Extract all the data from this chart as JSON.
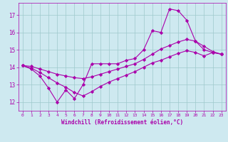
{
  "xlabel": "Windchill (Refroidissement éolien,°C)",
  "bg_color": "#cee9f0",
  "line_color": "#aa00aa",
  "grid_color": "#9ec8cc",
  "xlim": [
    -0.5,
    23.5
  ],
  "ylim": [
    11.5,
    17.7
  ],
  "xticks": [
    0,
    1,
    2,
    3,
    4,
    5,
    6,
    7,
    8,
    9,
    10,
    11,
    12,
    13,
    14,
    15,
    16,
    17,
    18,
    19,
    20,
    21,
    22,
    23
  ],
  "yticks": [
    12,
    13,
    14,
    15,
    16,
    17
  ],
  "line1_x": [
    0,
    1,
    2,
    3,
    4,
    5,
    6,
    7,
    8,
    9,
    10,
    11,
    12,
    13,
    14,
    15,
    16,
    17,
    18,
    19,
    20,
    21,
    22,
    23
  ],
  "line1_y": [
    14.1,
    13.9,
    13.5,
    12.8,
    12.0,
    12.7,
    12.2,
    13.0,
    14.2,
    14.2,
    14.2,
    14.2,
    14.4,
    14.5,
    15.0,
    16.1,
    16.0,
    17.35,
    17.25,
    16.7,
    15.5,
    15.0,
    14.85,
    14.75
  ],
  "line2_x": [
    0,
    1,
    2,
    3,
    4,
    5,
    6,
    7,
    8,
    9,
    10,
    11,
    12,
    13,
    14,
    15,
    16,
    17,
    18,
    19,
    20,
    21,
    22,
    23
  ],
  "line2_y": [
    14.1,
    14.05,
    13.9,
    13.75,
    13.6,
    13.5,
    13.4,
    13.35,
    13.45,
    13.6,
    13.75,
    13.9,
    14.05,
    14.2,
    14.45,
    14.75,
    15.05,
    15.25,
    15.45,
    15.6,
    15.5,
    15.2,
    14.9,
    14.75
  ],
  "line3_x": [
    0,
    1,
    2,
    3,
    4,
    5,
    6,
    7,
    8,
    9,
    10,
    11,
    12,
    13,
    14,
    15,
    16,
    17,
    18,
    19,
    20,
    21,
    22,
    23
  ],
  "line3_y": [
    14.1,
    13.95,
    13.7,
    13.4,
    13.1,
    12.85,
    12.55,
    12.35,
    12.6,
    12.9,
    13.15,
    13.35,
    13.55,
    13.75,
    14.0,
    14.25,
    14.4,
    14.6,
    14.8,
    14.95,
    14.85,
    14.65,
    14.85,
    14.75
  ]
}
